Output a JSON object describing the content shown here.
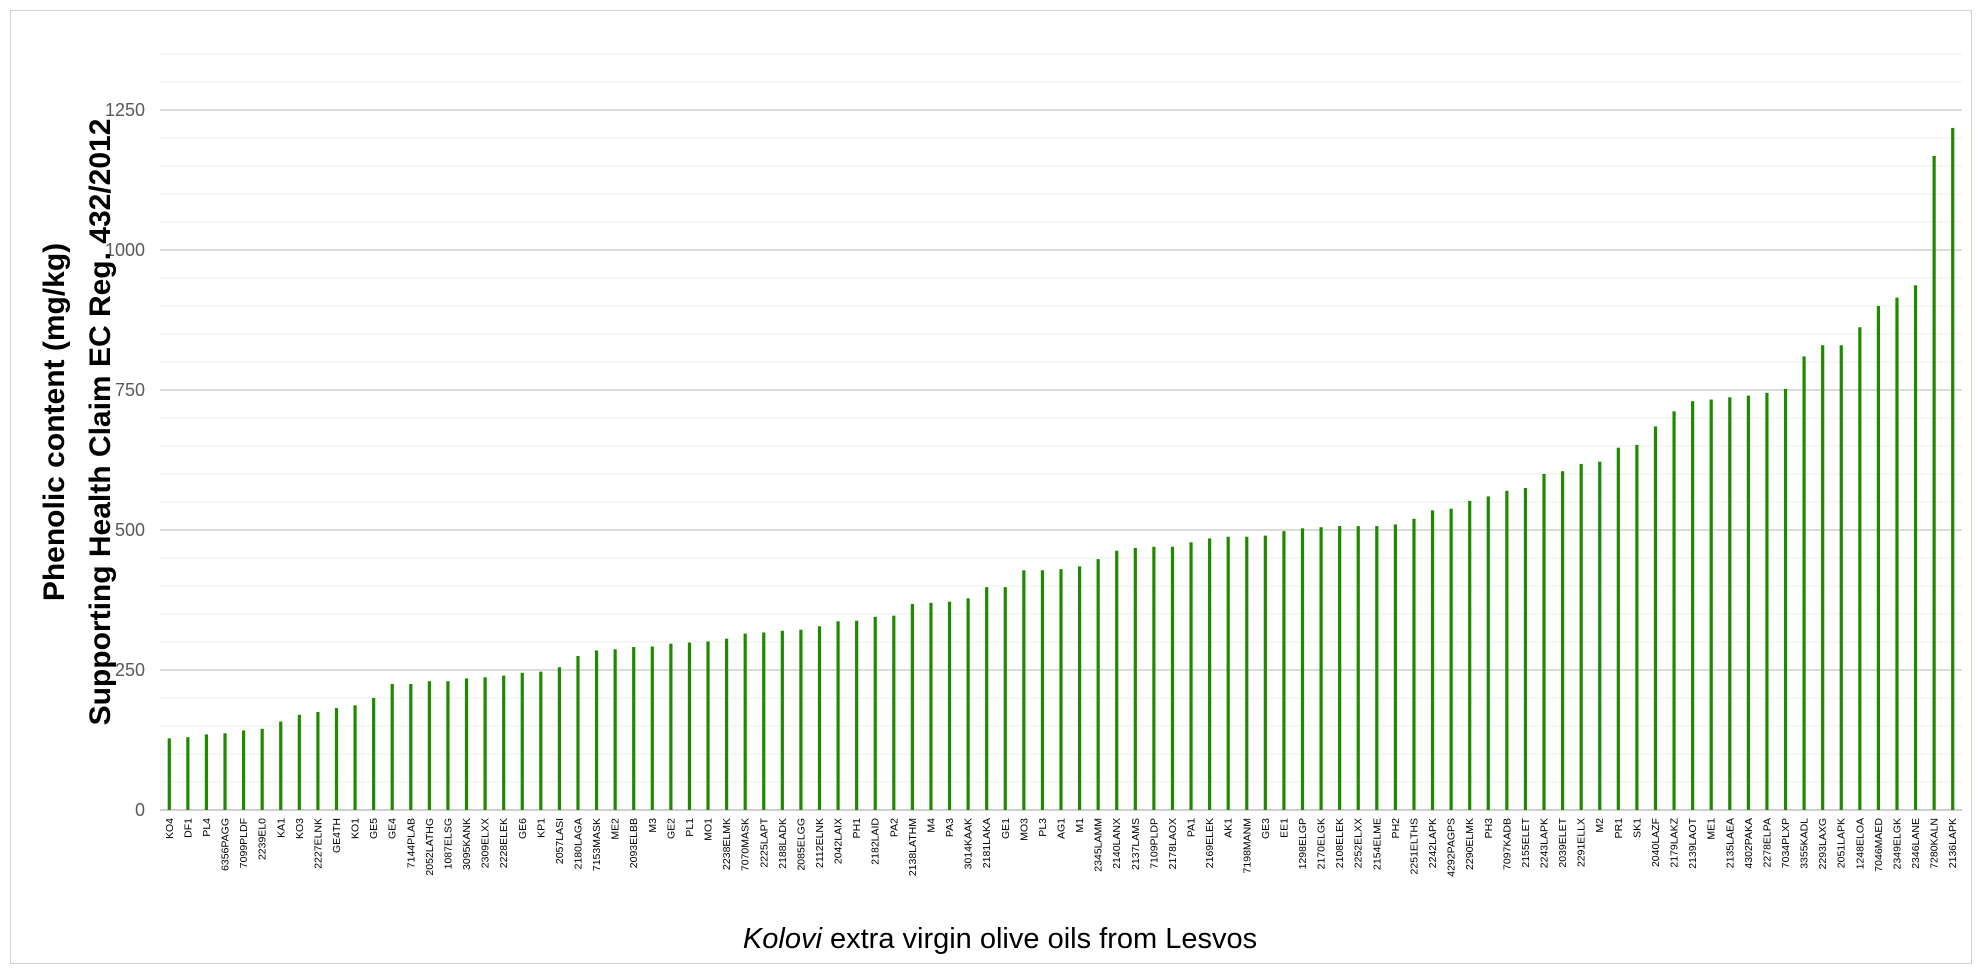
{
  "chart_data": {
    "type": "bar",
    "ylabel_lines": [
      "Phenolic content (mg/kg)",
      "Supporting  Health Claim EC Reg. 432/2012"
    ],
    "xlabel_italic": "Kolovi",
    "xlabel_rest": " extra virgin olive oils from Lesvos",
    "ylim": [
      0,
      1375
    ],
    "yticks": [
      0,
      250,
      500,
      750,
      1000,
      1250
    ],
    "ytick_labels": [
      "0",
      "250",
      "500",
      "750",
      "1000",
      "1250"
    ],
    "minor_grid_step": 50,
    "grid": true,
    "legend": "none",
    "bar_color": "#1f8a00",
    "categories": [
      "KO4",
      "DF1",
      "PL4",
      "6356PAGG",
      "7099PLDF",
      "2239EL0",
      "KA1",
      "KO3",
      "2227ELNK",
      "GE4TH",
      "KO1",
      "GE5",
      "GE4",
      "7144PLAB",
      "2052LATHG",
      "1087ELSG",
      "3095KANK",
      "2309ELXX",
      "2228ELEK",
      "GE6",
      "KP1",
      "2057LASI",
      "2180LAGA",
      "7153MASK",
      "ME2",
      "2093ELBB",
      "M3",
      "GE2",
      "PL1",
      "MO1",
      "2238ELMK",
      "7070MASK",
      "2225LAPT",
      "2188LADK",
      "2085ELGG",
      "2112ELNK",
      "2042LAIX",
      "PH1",
      "2182LAID",
      "PA2",
      "2138LATHM",
      "M4",
      "PA3",
      "3014KAAK",
      "2181LAKA",
      "GE1",
      "MO3",
      "PL3",
      "AG1",
      "M1",
      "2345LAMM",
      "2140LANX",
      "2137LAMS",
      "7109PLDP",
      "2178LAOX",
      "PA1",
      "2169ELEK",
      "AK1",
      "7198MANM",
      "GE3",
      "EE1",
      "1298ELGP",
      "2170ELGK",
      "2108ELEK",
      "2252ELXX",
      "2154ELME",
      "PH2",
      "2251ELTHS",
      "2242LAPK",
      "4292PAGPS",
      "2290ELMK",
      "PH3",
      "7097KADB",
      "2155ELET",
      "2243LAPK",
      "2039ELET",
      "2291ELLX",
      "M2",
      "PR1",
      "SK1",
      "2040LAZF",
      "2179LAKZ",
      "2139LAOT",
      "ME1",
      "2135LAEA",
      "4302PAKA",
      "2278ELPA",
      "7034PLXP",
      "3355KADL",
      "2293LAXG",
      "2051LAPK",
      "1248ELOA",
      "7046MAED",
      "2349ELGK",
      "2346LANE",
      "7280KALN",
      "2136LAPK"
    ],
    "values": [
      128,
      130,
      135,
      137,
      142,
      145,
      158,
      170,
      175,
      182,
      187,
      200,
      225,
      225,
      230,
      230,
      235,
      237,
      240,
      245,
      247,
      255,
      275,
      285,
      287,
      291,
      292,
      297,
      299,
      301,
      306,
      315,
      317,
      320,
      322,
      328,
      337,
      338,
      345,
      347,
      368,
      370,
      372,
      378,
      398,
      398,
      428,
      428,
      430,
      435,
      448,
      463,
      468,
      470,
      470,
      478,
      485,
      488,
      488,
      490,
      498,
      503,
      505,
      507,
      507,
      507,
      510,
      520,
      535,
      538,
      552,
      560,
      570,
      575,
      600,
      605,
      618,
      622,
      647,
      652,
      685,
      712,
      730,
      733,
      737,
      740,
      745,
      752,
      810,
      830,
      830,
      862,
      900,
      915,
      937,
      1168,
      1218
    ]
  }
}
